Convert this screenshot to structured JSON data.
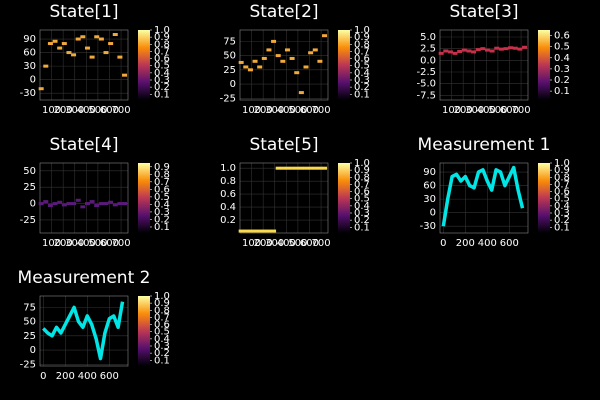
{
  "chart_data": [
    {
      "type": "heatmap",
      "title": "State[1]",
      "color": "#f2a93b",
      "x": [
        10,
        50,
        90,
        130,
        170,
        210,
        250,
        290,
        330,
        370,
        410,
        450,
        490,
        530,
        570,
        610,
        650,
        690,
        730
      ],
      "values": [
        -20,
        30,
        80,
        85,
        70,
        80,
        60,
        55,
        90,
        95,
        70,
        50,
        95,
        90,
        60,
        80,
        100,
        50,
        10
      ],
      "xlim": [
        0,
        760
      ],
      "xticks": [
        100,
        200,
        300,
        400,
        500,
        600,
        700
      ],
      "ylim": [
        -45,
        110
      ],
      "yticks": [
        -30,
        0,
        30,
        60,
        90
      ],
      "clim": [
        0.02,
        1
      ],
      "cticks": [
        0.1,
        0.2,
        0.3,
        0.4,
        0.5,
        0.6,
        0.7,
        0.8,
        0.9,
        {
          "value": 1,
          "label": "1.0"
        }
      ]
    },
    {
      "type": "heatmap",
      "title": "State[2]",
      "color": "#f2a93b",
      "x": [
        10,
        50,
        90,
        130,
        170,
        210,
        250,
        290,
        330,
        370,
        410,
        450,
        490,
        530,
        570,
        610,
        650,
        690,
        730
      ],
      "values": [
        38,
        30,
        25,
        40,
        30,
        45,
        60,
        75,
        50,
        40,
        60,
        45,
        20,
        -15,
        30,
        55,
        60,
        40,
        85
      ],
      "xlim": [
        0,
        760
      ],
      "xticks": [
        100,
        200,
        300,
        400,
        500,
        600,
        700
      ],
      "ylim": [
        -28,
        95
      ],
      "yticks": [
        -25,
        0,
        25,
        50,
        75
      ],
      "clim": [
        0.02,
        1
      ],
      "cticks": [
        0.1,
        0.2,
        0.3,
        0.4,
        0.5,
        0.6,
        0.7,
        0.8,
        0.9,
        {
          "value": 1,
          "label": "1.0"
        }
      ]
    },
    {
      "type": "heatmap",
      "title": "State[3]",
      "color": "#c8304a",
      "x": [
        10,
        50,
        90,
        130,
        170,
        210,
        250,
        290,
        330,
        370,
        410,
        450,
        490,
        530,
        570,
        610,
        650,
        690,
        730
      ],
      "values": [
        1.5,
        2,
        1.8,
        1.5,
        1.9,
        2.2,
        2,
        1.8,
        2.3,
        2.5,
        2.2,
        2,
        2.6,
        2.4,
        2.5,
        2.7,
        2.6,
        2.4,
        2.8
      ],
      "xlim": [
        0,
        760
      ],
      "xticks": [
        100,
        200,
        300,
        400,
        500,
        600,
        700
      ],
      "ylim": [
        -8.5,
        6.5
      ],
      "yticks": [
        {
          "value": -7.5,
          "label": "-7.5"
        },
        {
          "value": -5,
          "label": "-5.0"
        },
        {
          "value": -2.5,
          "label": "-2.5"
        },
        {
          "value": 0,
          "label": "0.0"
        },
        {
          "value": 2.5,
          "label": "2.5"
        },
        {
          "value": 5,
          "label": "5.0"
        }
      ],
      "clim": [
        0.02,
        0.65
      ],
      "cticks": [
        0.1,
        0.2,
        0.3,
        0.4,
        0.5,
        0.6
      ]
    },
    {
      "type": "heatmap",
      "title": "State[4]",
      "color": "#5a1a7a",
      "x": [
        10,
        50,
        90,
        130,
        170,
        210,
        250,
        290,
        330,
        370,
        410,
        450,
        490,
        530,
        570,
        610,
        650,
        690,
        730
      ],
      "values": [
        0,
        3,
        -3,
        0,
        2,
        -2,
        0,
        0,
        5,
        -5,
        0,
        3,
        -3,
        0,
        0,
        2,
        -2,
        0,
        0
      ],
      "xlim": [
        0,
        760
      ],
      "xticks": [
        100,
        200,
        300,
        400,
        500,
        600,
        700
      ],
      "ylim": [
        -45,
        62
      ],
      "yticks": [
        -25,
        0,
        25,
        50
      ],
      "clim": [
        0.02,
        0.95
      ],
      "cticks": [
        0.1,
        0.2,
        0.3,
        0.4,
        0.5,
        0.6,
        0.7,
        0.8,
        0.9
      ]
    },
    {
      "type": "heatmap",
      "title": "State[5]",
      "color": "#f9d94a",
      "x": [
        10,
        50,
        90,
        130,
        170,
        210,
        250,
        290,
        330,
        370,
        410,
        450,
        490,
        530,
        570,
        610,
        650,
        690,
        730
      ],
      "values": [
        0.03,
        0.03,
        0.03,
        0.03,
        0.03,
        0.03,
        0.03,
        0.03,
        1,
        1,
        1,
        1,
        1,
        1,
        1,
        1,
        1,
        1,
        1
      ],
      "xlim": [
        0,
        760
      ],
      "xticks": [
        100,
        200,
        300,
        400,
        500,
        600,
        700
      ],
      "ylim": [
        0,
        1.08
      ],
      "yticks": [
        0.2,
        0.4,
        0.6,
        0.8,
        {
          "value": 1,
          "label": "1.0"
        }
      ],
      "clim": [
        0.02,
        1
      ],
      "cticks": [
        0.1,
        0.2,
        0.3,
        0.4,
        0.5,
        0.6,
        0.7,
        0.8,
        0.9,
        {
          "value": 1,
          "label": "1.0"
        }
      ]
    },
    {
      "type": "line",
      "title": "Measurement 1",
      "color": "#00e5e5",
      "x": [
        0,
        40,
        80,
        120,
        160,
        200,
        240,
        280,
        320,
        360,
        400,
        440,
        480,
        520,
        560,
        600,
        640,
        680,
        720
      ],
      "values": [
        -30,
        30,
        80,
        85,
        70,
        80,
        60,
        55,
        90,
        95,
        70,
        50,
        95,
        90,
        60,
        80,
        100,
        50,
        10
      ],
      "xlim": [
        -30,
        770
      ],
      "xticks": [
        0,
        200,
        400,
        600
      ],
      "ylim": [
        -45,
        110
      ],
      "yticks": [
        -30,
        0,
        30,
        60,
        90
      ],
      "clim": [
        0.02,
        1
      ],
      "cticks": [
        0.1,
        0.2,
        0.3,
        0.4,
        0.5,
        0.6,
        0.7,
        0.8,
        0.9,
        {
          "value": 1,
          "label": "1.0"
        }
      ]
    },
    {
      "type": "line",
      "title": "Measurement 2",
      "color": "#00e5e5",
      "x": [
        0,
        40,
        80,
        120,
        160,
        200,
        240,
        280,
        320,
        360,
        400,
        440,
        480,
        520,
        560,
        600,
        640,
        680,
        720
      ],
      "values": [
        38,
        30,
        25,
        40,
        30,
        45,
        60,
        75,
        50,
        40,
        60,
        45,
        20,
        -15,
        30,
        55,
        60,
        40,
        85
      ],
      "xlim": [
        -30,
        770
      ],
      "xticks": [
        0,
        200,
        400,
        600
      ],
      "ylim": [
        -28,
        95
      ],
      "yticks": [
        -25,
        0,
        25,
        50,
        75
      ],
      "clim": [
        0.02,
        1
      ],
      "cticks": [
        0.1,
        0.2,
        0.3,
        0.4,
        0.5,
        0.6,
        0.7,
        0.8,
        0.9,
        {
          "value": 1,
          "label": "1.0"
        }
      ]
    }
  ]
}
